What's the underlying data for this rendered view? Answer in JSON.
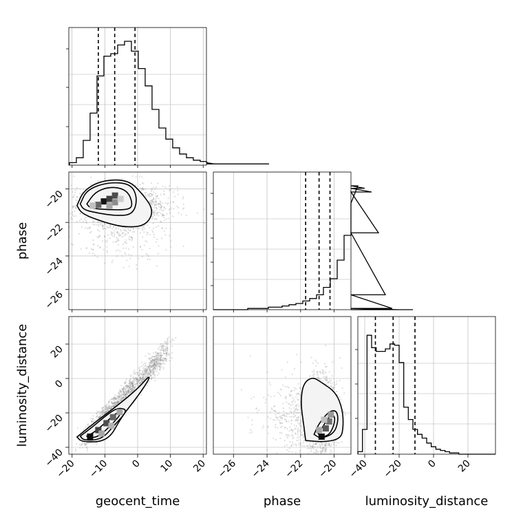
{
  "chart_data": {
    "type": "corner",
    "parameters": [
      "geocent_time",
      "phase",
      "luminosity_distance"
    ],
    "axis_labels": {
      "geocent_time": "geocent_time",
      "phase": "phase",
      "luminosity_distance": "luminosity_distance"
    },
    "ranges": {
      "geocent_time": [
        -21,
        21
      ],
      "phase": [
        -27.2,
        -19.0
      ],
      "luminosity_distance": [
        -44,
        36
      ]
    },
    "ticks": {
      "geocent_time": [
        -20,
        -10,
        0,
        10,
        20
      ],
      "phase_x": [
        -26,
        -24,
        -22,
        -20
      ],
      "phase_y": [
        -20,
        -22,
        -24,
        -26
      ],
      "luminosity_distance_x": [
        -40,
        -20,
        0,
        20
      ],
      "luminosity_distance_y": [
        20,
        0,
        -20,
        -40
      ]
    },
    "tick_labels": {
      "geocent_time": [
        "−20",
        "−10",
        "0",
        "10",
        "20"
      ],
      "phase_x": [
        "−26",
        "−24",
        "−22",
        "−20"
      ],
      "phase_y": [
        "−20",
        "−22",
        "−24",
        "−26"
      ],
      "luminosity_distance_x": [
        "−40",
        "−20",
        "0",
        "20"
      ],
      "luminosity_distance_y": [
        "20",
        "0",
        "−20",
        "−40"
      ]
    },
    "grid": true,
    "histograms": {
      "geocent_time": {
        "bin_start": -20.8,
        "bin_width": 2.1,
        "quantiles": [
          -12.0,
          -7.0,
          -0.8
        ],
        "counts": [
          0.02,
          0.06,
          0.2,
          0.42,
          0.72,
          0.88,
          0.9,
          0.97,
          1.0,
          0.92,
          0.78,
          0.64,
          0.45,
          0.3,
          0.21,
          0.14,
          0.09,
          0.06,
          0.04,
          0.03,
          0.02,
          0.01,
          0.01,
          0.01,
          0.01,
          0.01,
          0.01,
          0.01,
          0.01,
          0.01
        ]
      },
      "phase": {
        "bin_start": -27.2,
        "bin_width": 0.41,
        "quantiles": [
          -21.7,
          -20.9,
          -20.25
        ],
        "counts": [
          0.0,
          0.0,
          0.0,
          0.0,
          0.0,
          0.01,
          0.01,
          0.01,
          0.02,
          0.02,
          0.03,
          0.04,
          0.05,
          0.07,
          0.09,
          0.12,
          0.18,
          0.25,
          0.4,
          0.6,
          0.86,
          1.0,
          0.98,
          0.95,
          0.62,
          0.12,
          0.01,
          0.0,
          0.0,
          0.0
        ]
      },
      "luminosity_distance": {
        "bin_start": -44,
        "bin_width": 2.667,
        "quantiles": [
          -33.8,
          -23.5,
          -10.8
        ],
        "counts": [
          0.02,
          0.2,
          0.96,
          0.86,
          0.83,
          0.83,
          0.85,
          0.89,
          0.88,
          0.74,
          0.38,
          0.28,
          0.2,
          0.16,
          0.13,
          0.09,
          0.06,
          0.04,
          0.03,
          0.02,
          0.01,
          0.01,
          0.0,
          0.0,
          0.0,
          0.0,
          0.0,
          0.0,
          0.0,
          0.0
        ]
      }
    },
    "density_blocks": {
      "phase_vs_geocent_time": [
        {
          "x": -10.3,
          "y": -20.75,
          "level": 0.92
        },
        {
          "x": -8.6,
          "y": -20.6,
          "level": 0.75
        },
        {
          "x": -12.0,
          "y": -20.95,
          "level": 0.6
        },
        {
          "x": -6.9,
          "y": -20.4,
          "level": 0.7
        },
        {
          "x": -6.9,
          "y": -20.8,
          "level": 0.45
        },
        {
          "x": -8.6,
          "y": -21.0,
          "level": 0.35
        },
        {
          "x": -13.7,
          "y": -21.0,
          "level": 0.25
        },
        {
          "x": -5.2,
          "y": -20.6,
          "level": 0.2
        }
      ],
      "luminosity_distance_vs_geocent_time": [
        {
          "x": -14.5,
          "y": -33.8,
          "level": 0.95
        },
        {
          "x": -12.0,
          "y": -30.0,
          "level": 0.75
        },
        {
          "x": -9.5,
          "y": -26.0,
          "level": 0.7
        },
        {
          "x": -7.5,
          "y": -22.5,
          "level": 0.6
        },
        {
          "x": -5.5,
          "y": -19.5,
          "level": 0.35
        },
        {
          "x": -11.0,
          "y": -32.0,
          "level": 0.35
        },
        {
          "x": -8.0,
          "y": -27.5,
          "level": 0.3
        }
      ],
      "luminosity_distance_vs_phase": [
        {
          "x": -20.75,
          "y": -33.8,
          "level": 0.95
        },
        {
          "x": -20.5,
          "y": -29.0,
          "level": 0.65
        },
        {
          "x": -20.3,
          "y": -25.0,
          "level": 0.55
        },
        {
          "x": -20.2,
          "y": -21.0,
          "level": 0.4
        },
        {
          "x": -20.9,
          "y": -30.0,
          "level": 0.35
        },
        {
          "x": -20.6,
          "y": -24.0,
          "level": 0.25
        }
      ]
    },
    "contours": {
      "phase_vs_geocent_time": [
        [
          [
            -15.5,
            -20.9
          ],
          [
            -13.0,
            -20.2
          ],
          [
            -9.0,
            -19.9
          ],
          [
            -5.0,
            -19.95
          ],
          [
            -2.5,
            -20.3
          ],
          [
            -1.5,
            -21.0
          ],
          [
            -3.0,
            -21.25
          ],
          [
            -9.0,
            -21.25
          ],
          [
            -14.5,
            -21.15
          ],
          [
            -15.5,
            -20.9
          ]
        ],
        [
          [
            -17.5,
            -20.9
          ],
          [
            -15.5,
            -20.05
          ],
          [
            -9.0,
            -19.6
          ],
          [
            -2.0,
            -19.7
          ],
          [
            0.0,
            -20.6
          ],
          [
            -1.5,
            -21.55
          ],
          [
            -7.0,
            -21.6
          ],
          [
            -12.0,
            -21.45
          ],
          [
            -16.5,
            -21.25
          ],
          [
            -17.5,
            -20.9
          ]
        ],
        [
          [
            -18.5,
            -21.0
          ],
          [
            -16.5,
            -20.1
          ],
          [
            -11.0,
            -19.5
          ],
          [
            -3.0,
            -19.45
          ],
          [
            1.5,
            -20.3
          ],
          [
            5.0,
            -21.3
          ],
          [
            2.5,
            -22.2
          ],
          [
            -4.0,
            -22.3
          ],
          [
            -10.0,
            -22.0
          ],
          [
            -17.0,
            -21.5
          ],
          [
            -18.5,
            -21.0
          ]
        ]
      ],
      "luminosity_distance_vs_geocent_time": [
        [
          [
            -15.5,
            -33.5
          ],
          [
            -13.0,
            -31.0
          ],
          [
            -8.0,
            -22.5
          ],
          [
            -6.0,
            -19.5
          ],
          [
            -5.0,
            -20.5
          ],
          [
            -8.0,
            -27.0
          ],
          [
            -12.0,
            -34.0
          ],
          [
            -15.0,
            -34.5
          ],
          [
            -15.5,
            -33.5
          ]
        ],
        [
          [
            -17.5,
            -33.5
          ],
          [
            -14.0,
            -28.5
          ],
          [
            -8.0,
            -19.0
          ],
          [
            -5.5,
            -17.0
          ],
          [
            -3.0,
            -18.5
          ],
          [
            -7.0,
            -27.0
          ],
          [
            -11.0,
            -35.5
          ],
          [
            -16.5,
            -36.0
          ],
          [
            -17.5,
            -33.5
          ]
        ],
        [
          [
            -18.5,
            -34.0
          ],
          [
            -14.0,
            -27.0
          ],
          [
            -6.0,
            -15.5
          ],
          [
            0.0,
            -6.0
          ],
          [
            3.5,
            1.5
          ],
          [
            3.5,
            -0.5
          ],
          [
            0.0,
            -10.5
          ],
          [
            -5.0,
            -22.5
          ],
          [
            -9.0,
            -36.5
          ],
          [
            -17.0,
            -37.0
          ],
          [
            -18.5,
            -34.0
          ]
        ]
      ],
      "luminosity_distance_vs_phase": [
        [
          [
            -20.95,
            -32.0
          ],
          [
            -20.55,
            -26.0
          ],
          [
            -20.2,
            -21.0
          ],
          [
            -19.95,
            -22.0
          ],
          [
            -20.0,
            -27.0
          ],
          [
            -20.3,
            -33.0
          ],
          [
            -20.8,
            -34.0
          ],
          [
            -20.95,
            -32.0
          ]
        ],
        [
          [
            -21.2,
            -32.5
          ],
          [
            -20.9,
            -26.0
          ],
          [
            -20.3,
            -19.0
          ],
          [
            -19.85,
            -18.5
          ],
          [
            -19.75,
            -24.5
          ],
          [
            -20.0,
            -32.0
          ],
          [
            -20.8,
            -35.0
          ],
          [
            -21.2,
            -32.5
          ]
        ],
        [
          [
            -21.7,
            -36.0
          ],
          [
            -21.8,
            -28.0
          ],
          [
            -22.0,
            -14.0
          ],
          [
            -21.85,
            -3.0
          ],
          [
            -21.3,
            1.0
          ],
          [
            -20.8,
            -2.0
          ],
          [
            -19.9,
            -8.0
          ],
          [
            -19.5,
            -18.0
          ],
          [
            -19.45,
            -28.0
          ],
          [
            -19.6,
            -35.0
          ],
          [
            -20.6,
            -37.0
          ],
          [
            -21.7,
            -36.0
          ]
        ]
      ]
    },
    "scatter_pairs": [
      "phase_vs_geocent_time",
      "luminosity_distance_vs_geocent_time",
      "luminosity_distance_vs_phase"
    ]
  }
}
